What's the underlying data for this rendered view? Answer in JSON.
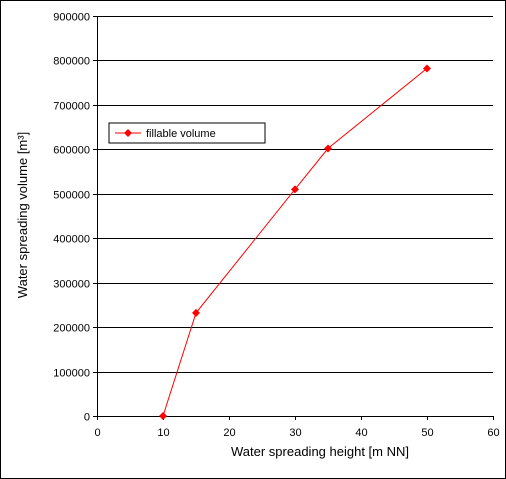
{
  "chart_data": {
    "type": "line",
    "title": "",
    "xlabel": "Water spreading height [m NN]",
    "ylabel": "Water spreading volume [m³]",
    "xlim": [
      0,
      60
    ],
    "ylim": [
      0,
      900000
    ],
    "x_ticks": [
      "0",
      "10",
      "20",
      "30",
      "40",
      "50",
      "60"
    ],
    "y_ticks": [
      "0",
      "100000",
      "200000",
      "300000",
      "400000",
      "500000",
      "600000",
      "700000",
      "800000",
      "900000"
    ],
    "grid": "horizontal",
    "legend_placement": "upper-left",
    "series": [
      {
        "name": "fillable volume",
        "color": "#ff0000",
        "marker": "diamond",
        "x": [
          10,
          15,
          30,
          35,
          50
        ],
        "y": [
          0,
          232000,
          510000,
          602000,
          782000
        ]
      }
    ]
  }
}
